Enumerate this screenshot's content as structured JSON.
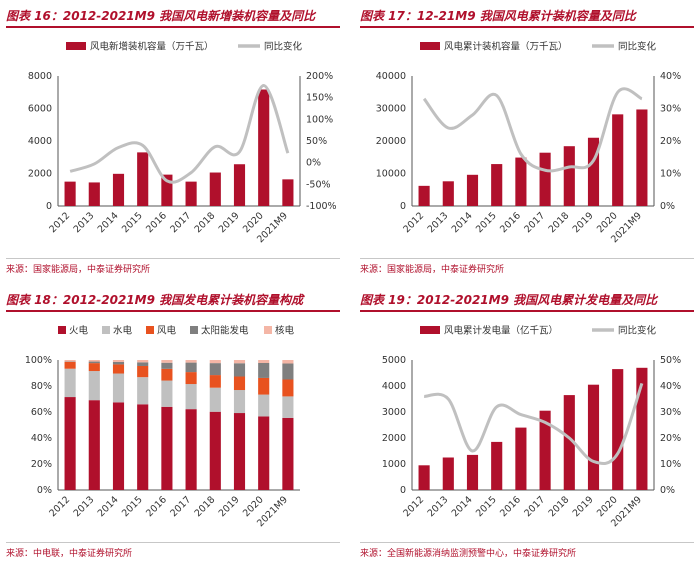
{
  "colors": {
    "bar": "#b0102c",
    "line": "#c0c0c0",
    "axis": "#555555"
  },
  "chart_data": [
    {
      "type": "bar",
      "title": "图表 16：2012-2021M9 我国风电新增装机容量及同比",
      "source": "来源：国家能源局，中泰证券研究所",
      "categories": [
        "2012",
        "2013",
        "2014",
        "2015",
        "2016",
        "2017",
        "2018",
        "2019",
        "2020",
        "2021M9"
      ],
      "series": [
        {
          "name": "风电新增装机容量（万千瓦）",
          "type": "bar",
          "axis": "left",
          "values": [
            1500,
            1450,
            1980,
            3300,
            1930,
            1500,
            2060,
            2570,
            7170,
            1640
          ]
        },
        {
          "name": "同比变化",
          "type": "line",
          "axis": "right",
          "values": [
            -20,
            -3,
            35,
            40,
            -42,
            -23,
            37,
            25,
            178,
            22
          ]
        }
      ],
      "yleft": {
        "min": 0,
        "max": 8000,
        "step": 2000,
        "suffix": ""
      },
      "yright": {
        "min": -100,
        "max": 200,
        "step": 50,
        "suffix": "%"
      }
    },
    {
      "type": "bar",
      "title": "图表 17：12-21M9 我国风电累计装机容量及同比",
      "source": "来源：国家能源局，中泰证券研究所",
      "categories": [
        "2012",
        "2013",
        "2014",
        "2015",
        "2016",
        "2017",
        "2018",
        "2019",
        "2020",
        "2021M9"
      ],
      "series": [
        {
          "name": "风电累计装机容量（万千瓦）",
          "type": "bar",
          "axis": "left",
          "values": [
            6200,
            7600,
            9600,
            12900,
            14900,
            16400,
            18400,
            21000,
            28200,
            29700
          ]
        },
        {
          "name": "同比变化",
          "type": "line",
          "axis": "right",
          "values": [
            33,
            24,
            28,
            34,
            16,
            11,
            12,
            14,
            35,
            33
          ]
        }
      ],
      "yleft": {
        "min": 0,
        "max": 40000,
        "step": 10000,
        "suffix": ""
      },
      "yright": {
        "min": 0,
        "max": 40,
        "step": 10,
        "suffix": "%"
      }
    },
    {
      "type": "stacked-bar",
      "title": "图表 18：2012-2021M9 我国发电累计装机容量构成",
      "source": "来源：中电联，中泰证券研究所",
      "categories": [
        "2012",
        "2013",
        "2014",
        "2015",
        "2016",
        "2017",
        "2018",
        "2019",
        "2020",
        "2021M9"
      ],
      "series": [
        {
          "name": "火电",
          "color": "#b0102c",
          "values": [
            71.5,
            69.1,
            67.4,
            65.9,
            64.0,
            62.2,
            60.2,
            59.2,
            56.6,
            55.5
          ]
        },
        {
          "name": "水电",
          "color": "#c0c0c0",
          "values": [
            21.8,
            22.4,
            22.2,
            20.9,
            20.2,
            19.3,
            18.5,
            17.7,
            16.8,
            16.5
          ]
        },
        {
          "name": "风电",
          "color": "#e8521f",
          "values": [
            5.3,
            6.1,
            7.0,
            8.6,
            9.0,
            9.2,
            9.7,
            10.4,
            12.8,
            13.0
          ]
        },
        {
          "name": "太阳能发电",
          "color": "#7f7f7f",
          "values": [
            0.3,
            1.2,
            1.9,
            2.8,
            4.7,
            7.3,
            9.2,
            10.2,
            11.5,
            12.3
          ]
        },
        {
          "name": "核电",
          "color": "#f4b6a6",
          "values": [
            1.1,
            1.2,
            1.5,
            1.8,
            2.1,
            2.0,
            2.4,
            2.5,
            2.3,
            2.7
          ]
        }
      ],
      "yleft": {
        "min": 0,
        "max": 100,
        "step": 20,
        "suffix": "%"
      }
    },
    {
      "type": "bar",
      "title": "图表 19：2012-2021M9 我国风电累计发电量及同比",
      "source": "来源：全国新能源消纳监测预警中心，中泰证券研究所",
      "categories": [
        "2012",
        "2013",
        "2014",
        "2015",
        "2016",
        "2017",
        "2018",
        "2019",
        "2020",
        "2021M9"
      ],
      "series": [
        {
          "name": "风电累计发电量（亿千瓦）",
          "type": "bar",
          "axis": "left",
          "values": [
            950,
            1250,
            1350,
            1850,
            2400,
            3050,
            3650,
            4050,
            4650,
            4700
          ]
        },
        {
          "name": "同比变化",
          "type": "line",
          "axis": "right",
          "values": [
            36,
            35,
            15,
            32,
            29,
            26,
            20,
            11,
            14,
            41
          ]
        }
      ],
      "yleft": {
        "min": 0,
        "max": 5000,
        "step": 1000,
        "suffix": ""
      },
      "yright": {
        "min": 0,
        "max": 50,
        "step": 10,
        "suffix": "%"
      }
    }
  ]
}
